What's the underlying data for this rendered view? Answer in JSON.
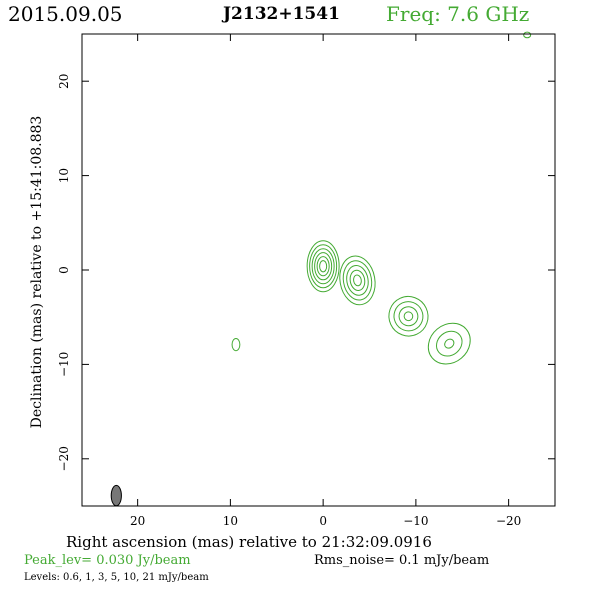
{
  "header": {
    "date": "2015.09.05",
    "source": "J2132+1541",
    "freq": "Freq: 7.6 GHz"
  },
  "footer": {
    "peak": "Peak_lev=  0.030 Jy/beam",
    "rms": "Rms_noise=  0.1 mJy/beam",
    "levels": "Levels: 0.6,   1,   3,   5,  10,  21 mJy/beam"
  },
  "colors": {
    "contour": "#44aa33",
    "beam_fill": "#777777",
    "frame": "#000000"
  },
  "chart_data": {
    "type": "contour",
    "xlabel": "Right ascension (mas) relative to 21:32:09.0916",
    "ylabel": "Declination (mas) relative to +15:41:08.883",
    "xlim": [
      26,
      -25
    ],
    "ylim": [
      -25,
      25
    ],
    "xticks": [
      20,
      10,
      0,
      -10,
      -20
    ],
    "yticks": [
      20,
      10,
      0,
      -10,
      -20
    ],
    "xtick_labels": [
      "20",
      "10",
      "0",
      "−10",
      "−20"
    ],
    "ytick_labels": [
      "20",
      "10",
      "0",
      "−10",
      "−20"
    ],
    "levels_mJy": [
      0.6,
      1,
      3,
      5,
      10,
      21
    ],
    "peak_Jy_per_beam": 0.03,
    "rms_mJy_per_beam": 0.1,
    "components": [
      {
        "ra": 0.0,
        "dec": 0.4,
        "a": 1.15,
        "b": 2.7,
        "pa": 0,
        "contours": 6
      },
      {
        "ra": -3.7,
        "dec": -1.1,
        "a": 1.25,
        "b": 2.6,
        "pa": 10,
        "contours": 5
      },
      {
        "ra": -9.2,
        "dec": -4.9,
        "a": 1.4,
        "b": 2.1,
        "pa": 25,
        "contours": 4
      },
      {
        "ra": -13.6,
        "dec": -7.8,
        "a": 1.6,
        "b": 2.0,
        "pa": 40,
        "contours": 3
      },
      {
        "ra": 9.4,
        "dec": -7.9,
        "a": 0.28,
        "b": 0.65,
        "pa": 0,
        "contours": 1
      },
      {
        "ra": -22.0,
        "dec": 24.9,
        "a": 0.25,
        "b": 0.3,
        "pa": 0,
        "contours": 1
      }
    ],
    "beam": {
      "ra": 22.3,
      "dec": -23.9,
      "a": 0.55,
      "b": 1.2,
      "pa": 0
    }
  }
}
